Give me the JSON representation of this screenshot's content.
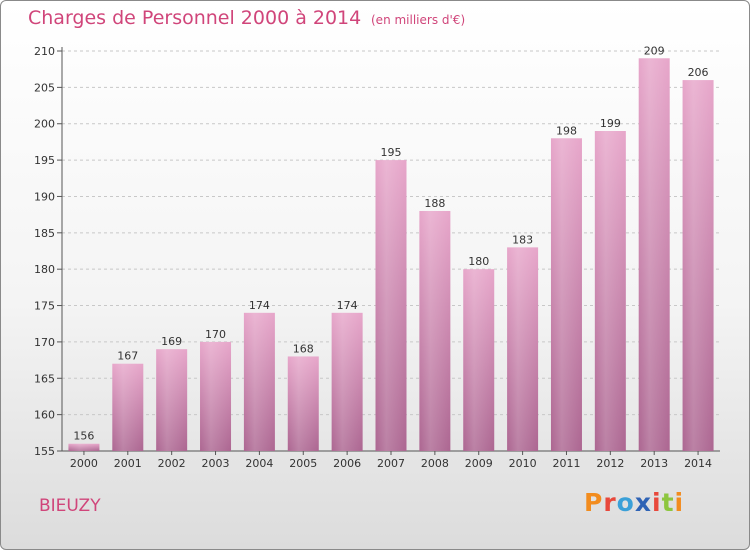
{
  "header": {
    "title": "Charges de Personnel 2000 à 2014",
    "unit_note": "(en milliers d'€)"
  },
  "footer": {
    "commune": "BIEUZY",
    "logo_text": "Proxiti",
    "logo_colors": [
      "#f28c1e",
      "#e8483b",
      "#3aa0d8",
      "#2f63b5",
      "#e8483b",
      "#8dc63f",
      "#f28c1e"
    ]
  },
  "colors": {
    "accent": "#d0457a",
    "bar_top": "#e7a6ca",
    "bar_bottom": "#ac6691"
  },
  "chart_data": {
    "type": "bar",
    "title": "Charges de Personnel 2000 à 2014",
    "subtitle": "(en milliers d'€)",
    "categories": [
      "2000",
      "2001",
      "2002",
      "2003",
      "2004",
      "2005",
      "2006",
      "2007",
      "2008",
      "2009",
      "2010",
      "2011",
      "2012",
      "2013",
      "2014"
    ],
    "values": [
      156,
      167,
      169,
      170,
      174,
      168,
      174,
      195,
      188,
      180,
      183,
      198,
      199,
      209,
      206
    ],
    "ylim": [
      155,
      210
    ],
    "yticks": [
      155,
      160,
      165,
      170,
      175,
      180,
      185,
      190,
      195,
      200,
      205,
      210
    ],
    "grid": true,
    "xlabel": "",
    "ylabel": ""
  }
}
